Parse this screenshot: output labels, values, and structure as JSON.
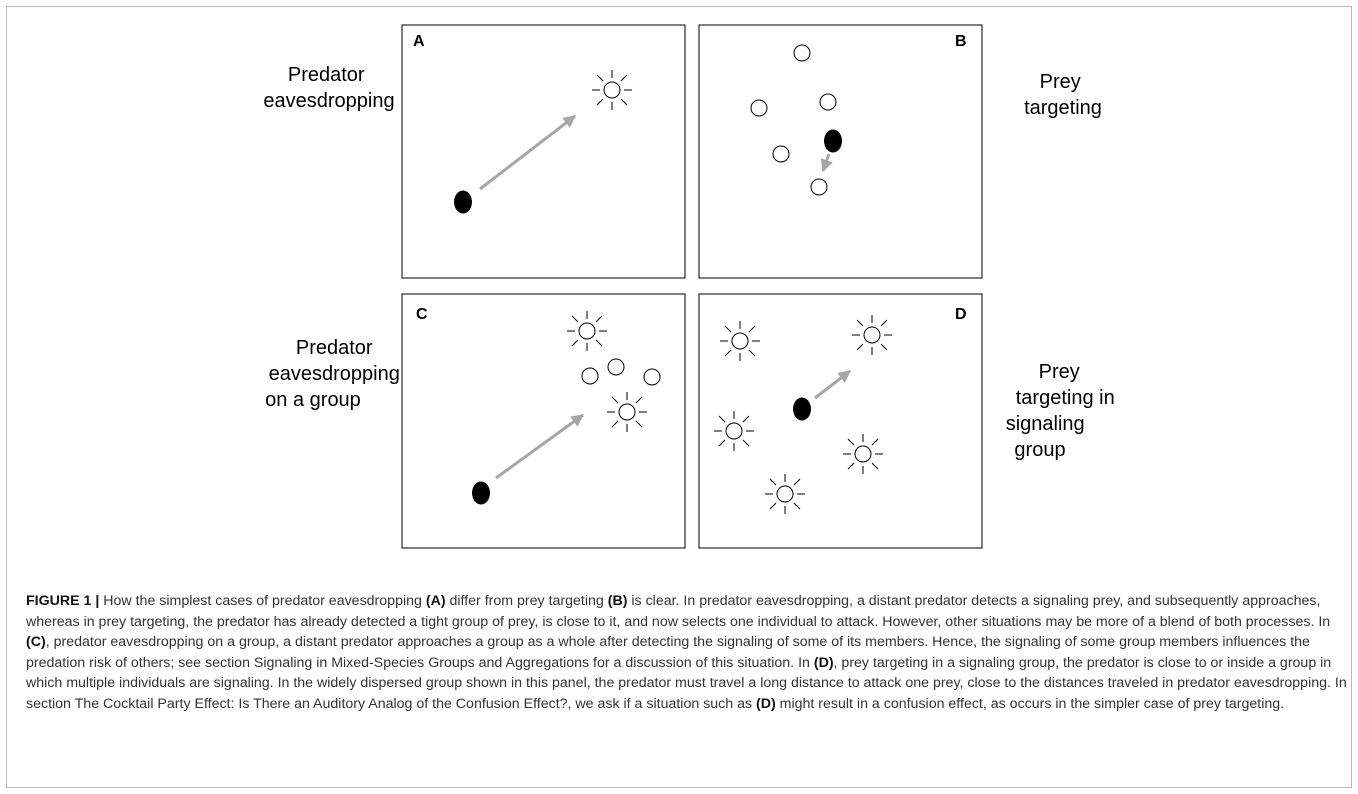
{
  "figure": {
    "panels": [
      {
        "letter": "A",
        "label_lines": [
          "Predator",
          "eavesdropping"
        ]
      },
      {
        "letter": "B",
        "label_lines": [
          "Prey",
          "targeting"
        ]
      },
      {
        "letter": "C",
        "label_lines": [
          "Predator",
          "eavesdropping",
          "on a group"
        ]
      },
      {
        "letter": "D",
        "label_lines": [
          "Prey",
          "targeting in",
          "signaling",
          "group"
        ]
      }
    ],
    "colors": {
      "predator": "#000000",
      "arrow": "#a6a6a6",
      "prey_stroke": "#000000",
      "panel_border": "#000000"
    }
  },
  "caption": {
    "figure_label": "FIGURE 1 |",
    "parts": [
      {
        "text": " How the simplest cases of predator eavesdropping ",
        "bold": false
      },
      {
        "text": "(A)",
        "bold": true
      },
      {
        "text": " differ from prey targeting ",
        "bold": false
      },
      {
        "text": "(B)",
        "bold": true
      },
      {
        "text": " is clear. In predator eavesdropping, a distant predator detects a signaling prey, and subsequently approaches, whereas in prey targeting, the predator has already detected a tight group of prey, is close to it, and now selects one individual to attack. However, other situations may be more of a blend of both processes. In ",
        "bold": false
      },
      {
        "text": "(C)",
        "bold": true
      },
      {
        "text": ", predator eavesdropping on a group, a distant predator approaches a group as a whole after detecting the signaling of some of its members. Hence, the signaling of some group members influences the predation risk of others; see section Signaling in Mixed-Species Groups and Aggregations for a discussion of this situation. In ",
        "bold": false
      },
      {
        "text": "(D)",
        "bold": true
      },
      {
        "text": ", prey targeting in a signaling group, the predator is close to or inside a group in which multiple individuals are signaling. In the widely dispersed group shown in this panel, the predator must travel a long distance to attack one prey, close to the distances traveled in predator eavesdropping. In section The Cocktail Party Effect: Is There an Auditory Analog of the Confusion Effect?, we ask if a situation such as ",
        "bold": false
      },
      {
        "text": "(D)",
        "bold": true
      },
      {
        "text": " might result in a confusion effect, as occurs in the simpler case of prey targeting.",
        "bold": false
      }
    ]
  }
}
